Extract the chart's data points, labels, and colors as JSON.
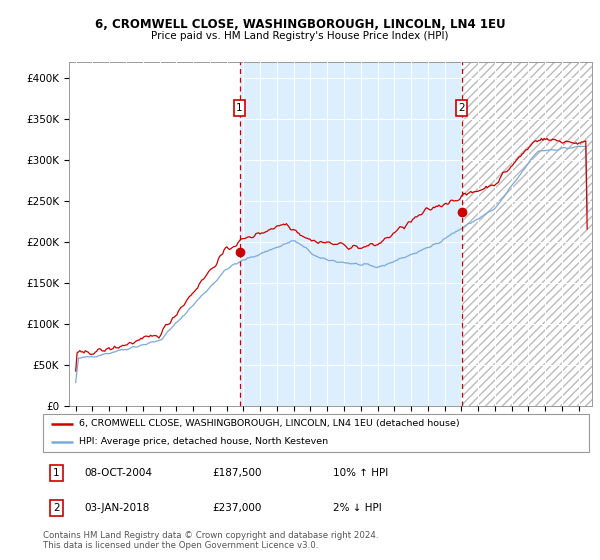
{
  "title1": "6, CROMWELL CLOSE, WASHINGBOROUGH, LINCOLN, LN4 1EU",
  "title2": "Price paid vs. HM Land Registry's House Price Index (HPI)",
  "legend_line1": "6, CROMWELL CLOSE, WASHINGBOROUGH, LINCOLN, LN4 1EU (detached house)",
  "legend_line2": "HPI: Average price, detached house, North Kesteven",
  "marker1_date": "08-OCT-2004",
  "marker1_price": "£187,500",
  "marker1_hpi": "10% ↑ HPI",
  "marker2_date": "03-JAN-2018",
  "marker2_price": "£237,000",
  "marker2_hpi": "2% ↓ HPI",
  "footer": "Contains HM Land Registry data © Crown copyright and database right 2024.\nThis data is licensed under the Open Government Licence v3.0.",
  "red_color": "#cc0000",
  "blue_color": "#7aaadd",
  "bg_color": "#ddeeff",
  "sale1_x": 2004.77,
  "sale1_y": 187500,
  "sale2_x": 2018.01,
  "sale2_y": 237000,
  "ylim": [
    0,
    420000
  ],
  "xlim_left": 1994.6,
  "xlim_right": 2025.8
}
